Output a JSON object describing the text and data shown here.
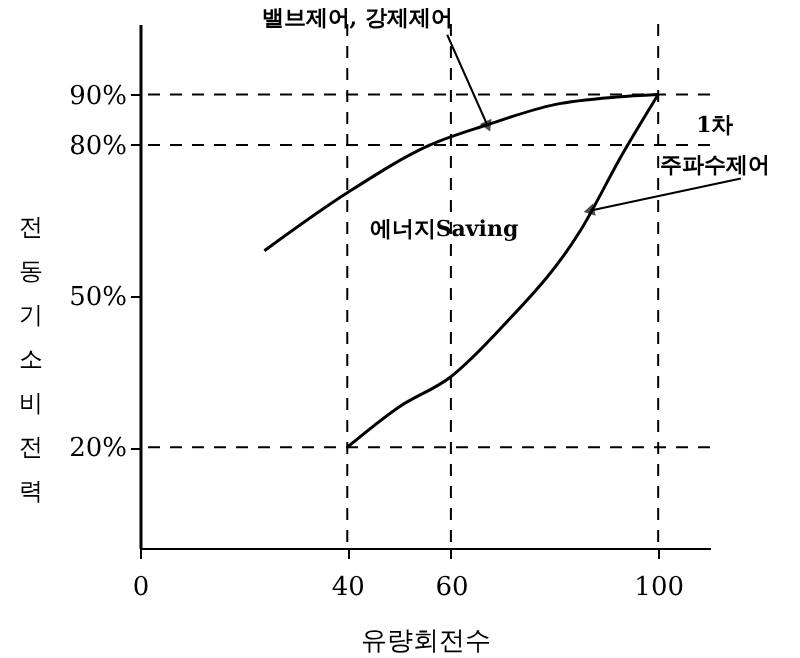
{
  "chart_data": {
    "type": "line",
    "xlabel": "유량회전수",
    "ylabel": "전동기소비전력",
    "xlim": [
      0,
      110
    ],
    "ylim": [
      0,
      104
    ],
    "xticks": [
      0,
      40,
      60,
      100
    ],
    "yticks": [
      {
        "value": 20,
        "label": "20%"
      },
      {
        "value": 50,
        "label": "50%"
      },
      {
        "value": 80,
        "label": "80%"
      },
      {
        "value": 90,
        "label": "90%"
      }
    ],
    "series": [
      {
        "color": "#000000",
        "x": [
          24,
          40,
          56,
          67,
          80,
          92,
          100
        ],
        "values": [
          59,
          70.5,
          80,
          84,
          88,
          89.5,
          90
        ]
      },
      {
        "color": "#000000",
        "x": [
          40,
          50,
          60,
          70,
          85,
          93,
          100
        ],
        "values": [
          20,
          28,
          34,
          44,
          63,
          78,
          90
        ]
      }
    ],
    "ref_lines": [
      {
        "axis": "y",
        "value": 90,
        "line_style": "dashed"
      },
      {
        "axis": "y",
        "value": 80,
        "line_style": "dashed"
      },
      {
        "axis": "y",
        "value": 20,
        "line_style": "dashed"
      },
      {
        "axis": "x",
        "value": 40,
        "line_style": "dashed"
      },
      {
        "axis": "x",
        "value": 60,
        "line_style": "dashed"
      },
      {
        "axis": "x",
        "value": 100,
        "line_style": "dashed"
      }
    ],
    "annotations": [
      {
        "text": "밸브제어, 강제제어",
        "x": 67,
        "y": 84
      },
      {
        "text": "1차 주파수제어",
        "x": 87,
        "y": 67
      },
      "에너지Saving"
    ],
    "grid": false,
    "marker": "none",
    "line_style": "solid"
  }
}
